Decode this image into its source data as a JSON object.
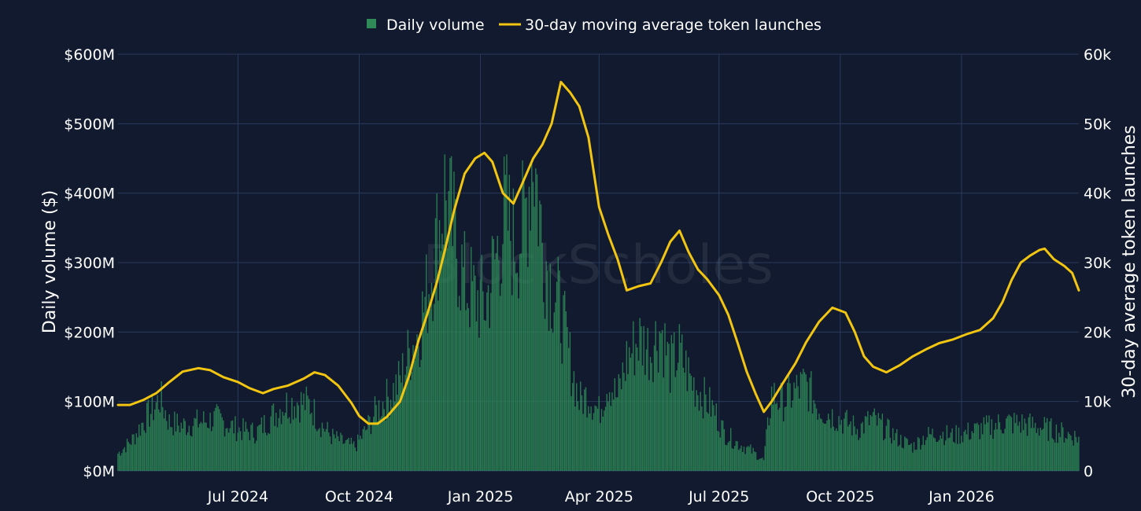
{
  "chart_data": {
    "type": "bar+line",
    "legend": {
      "placement": "top-center",
      "items": [
        {
          "label": "Daily volume",
          "color": "#2e8b57",
          "kind": "bar"
        },
        {
          "label": "30-day moving average token launches",
          "color": "#f2c511",
          "kind": "line"
        }
      ]
    },
    "watermark": "BlockScholes",
    "y_left": {
      "title": "Daily volume ($)",
      "range": [
        0,
        600000000
      ],
      "ticks": [
        {
          "v": 0,
          "label": "$0M"
        },
        {
          "v": 100000000,
          "label": "$100M"
        },
        {
          "v": 200000000,
          "label": "$200M"
        },
        {
          "v": 300000000,
          "label": "$300M"
        },
        {
          "v": 400000000,
          "label": "$400M"
        },
        {
          "v": 500000000,
          "label": "$500M"
        },
        {
          "v": 600000000,
          "label": "$600M"
        }
      ]
    },
    "y_right": {
      "title": "30-day average token launches",
      "range": [
        0,
        60000
      ],
      "ticks": [
        {
          "v": 0,
          "label": "0"
        },
        {
          "v": 10000,
          "label": "10k"
        },
        {
          "v": 20000,
          "label": "20k"
        },
        {
          "v": 30000,
          "label": "30k"
        },
        {
          "v": 40000,
          "label": "40k"
        },
        {
          "v": 50000,
          "label": "50k"
        },
        {
          "v": 60000,
          "label": "60k"
        }
      ]
    },
    "x_axis": {
      "range": [
        "2024-04-01",
        "2026-03-31"
      ],
      "ticks": [
        {
          "date": "2024-07-01",
          "label": "Jul 2024"
        },
        {
          "date": "2024-10-01",
          "label": "Oct 2024"
        },
        {
          "date": "2025-01-01",
          "label": "Jan 2025"
        },
        {
          "date": "2025-04-01",
          "label": "Apr 2025"
        },
        {
          "date": "2025-07-01",
          "label": "Jul 2025"
        },
        {
          "date": "2025-10-01",
          "label": "Oct 2025"
        },
        {
          "date": "2026-01-01",
          "label": "Jan 2026"
        }
      ]
    },
    "grid": true,
    "series": [
      {
        "name": "Daily volume",
        "axis": "left",
        "type": "bar",
        "color": "#2e8b57",
        "points": [
          [
            "2024-04-01",
            25000000
          ],
          [
            "2024-04-12",
            45000000
          ],
          [
            "2024-04-20",
            70000000
          ],
          [
            "2024-04-28",
            90000000
          ],
          [
            "2024-05-03",
            105000000
          ],
          [
            "2024-05-10",
            70000000
          ],
          [
            "2024-05-20",
            65000000
          ],
          [
            "2024-06-01",
            70000000
          ],
          [
            "2024-06-15",
            75000000
          ],
          [
            "2024-07-01",
            60000000
          ],
          [
            "2024-07-15",
            55000000
          ],
          [
            "2024-07-25",
            75000000
          ],
          [
            "2024-08-05",
            95000000
          ],
          [
            "2024-08-15",
            100000000
          ],
          [
            "2024-08-25",
            95000000
          ],
          [
            "2024-09-01",
            70000000
          ],
          [
            "2024-09-10",
            50000000
          ],
          [
            "2024-09-20",
            40000000
          ],
          [
            "2024-09-28",
            35000000
          ],
          [
            "2024-10-05",
            55000000
          ],
          [
            "2024-10-15",
            90000000
          ],
          [
            "2024-10-25",
            110000000
          ],
          [
            "2024-11-01",
            130000000
          ],
          [
            "2024-11-08",
            170000000
          ],
          [
            "2024-11-15",
            200000000
          ],
          [
            "2024-11-22",
            260000000
          ],
          [
            "2024-11-29",
            330000000
          ],
          [
            "2024-12-05",
            400000000
          ],
          [
            "2024-12-12",
            340000000
          ],
          [
            "2024-12-20",
            270000000
          ],
          [
            "2024-12-28",
            250000000
          ],
          [
            "2025-01-05",
            240000000
          ],
          [
            "2025-01-12",
            300000000
          ],
          [
            "2025-01-20",
            370000000
          ],
          [
            "2025-01-26",
            330000000
          ],
          [
            "2025-02-03",
            350000000
          ],
          [
            "2025-02-10",
            470000000
          ],
          [
            "2025-02-17",
            330000000
          ],
          [
            "2025-02-24",
            270000000
          ],
          [
            "2025-03-03",
            230000000
          ],
          [
            "2025-03-10",
            160000000
          ],
          [
            "2025-03-17",
            100000000
          ],
          [
            "2025-03-24",
            110000000
          ],
          [
            "2025-04-01",
            85000000
          ],
          [
            "2025-04-08",
            130000000
          ],
          [
            "2025-04-15",
            105000000
          ],
          [
            "2025-04-22",
            160000000
          ],
          [
            "2025-05-01",
            190000000
          ],
          [
            "2025-05-10",
            175000000
          ],
          [
            "2025-05-18",
            205000000
          ],
          [
            "2025-05-25",
            150000000
          ],
          [
            "2025-06-01",
            170000000
          ],
          [
            "2025-06-10",
            130000000
          ],
          [
            "2025-06-20",
            105000000
          ],
          [
            "2025-06-28",
            85000000
          ],
          [
            "2025-07-05",
            55000000
          ],
          [
            "2025-07-15",
            40000000
          ],
          [
            "2025-07-25",
            30000000
          ],
          [
            "2025-08-04",
            15000000
          ],
          [
            "2025-08-10",
            110000000
          ],
          [
            "2025-08-18",
            100000000
          ],
          [
            "2025-08-28",
            115000000
          ],
          [
            "2025-09-05",
            125000000
          ],
          [
            "2025-09-15",
            90000000
          ],
          [
            "2025-09-25",
            80000000
          ],
          [
            "2025-10-05",
            70000000
          ],
          [
            "2025-10-15",
            60000000
          ],
          [
            "2025-10-25",
            75000000
          ],
          [
            "2025-11-05",
            60000000
          ],
          [
            "2025-11-15",
            45000000
          ],
          [
            "2025-11-25",
            35000000
          ],
          [
            "2025-12-05",
            50000000
          ],
          [
            "2025-12-15",
            55000000
          ],
          [
            "2025-12-25",
            50000000
          ],
          [
            "2026-01-05",
            55000000
          ],
          [
            "2026-01-15",
            60000000
          ],
          [
            "2026-01-25",
            65000000
          ],
          [
            "2026-02-05",
            70000000
          ],
          [
            "2026-02-15",
            68000000
          ],
          [
            "2026-02-25",
            65000000
          ],
          [
            "2026-03-08",
            60000000
          ],
          [
            "2026-03-18",
            55000000
          ],
          [
            "2026-03-31",
            48000000
          ]
        ]
      },
      {
        "name": "30-day moving average token launches",
        "axis": "right",
        "type": "line",
        "color": "#f2c511",
        "points": [
          [
            "2024-04-01",
            9500
          ],
          [
            "2024-04-10",
            9500
          ],
          [
            "2024-04-20",
            10200
          ],
          [
            "2024-04-30",
            11200
          ],
          [
            "2024-05-10",
            12800
          ],
          [
            "2024-05-20",
            14300
          ],
          [
            "2024-06-01",
            14800
          ],
          [
            "2024-06-10",
            14500
          ],
          [
            "2024-06-20",
            13500
          ],
          [
            "2024-07-01",
            12800
          ],
          [
            "2024-07-10",
            11900
          ],
          [
            "2024-07-20",
            11200
          ],
          [
            "2024-07-28",
            11800
          ],
          [
            "2024-08-08",
            12300
          ],
          [
            "2024-08-20",
            13300
          ],
          [
            "2024-08-28",
            14200
          ],
          [
            "2024-09-05",
            13800
          ],
          [
            "2024-09-15",
            12300
          ],
          [
            "2024-09-25",
            9800
          ],
          [
            "2024-10-01",
            7900
          ],
          [
            "2024-10-08",
            6800
          ],
          [
            "2024-10-15",
            6800
          ],
          [
            "2024-10-22",
            7800
          ],
          [
            "2024-11-01",
            10000
          ],
          [
            "2024-11-08",
            13800
          ],
          [
            "2024-11-15",
            18800
          ],
          [
            "2024-11-22",
            22800
          ],
          [
            "2024-11-29",
            27200
          ],
          [
            "2024-12-05",
            31800
          ],
          [
            "2024-12-12",
            37500
          ],
          [
            "2024-12-20",
            42800
          ],
          [
            "2024-12-28",
            45000
          ],
          [
            "2025-01-04",
            45800
          ],
          [
            "2025-01-10",
            44500
          ],
          [
            "2025-01-18",
            40000
          ],
          [
            "2025-01-26",
            38500
          ],
          [
            "2025-02-02",
            41500
          ],
          [
            "2025-02-10",
            45000
          ],
          [
            "2025-02-17",
            47000
          ],
          [
            "2025-02-24",
            50000
          ],
          [
            "2025-03-03",
            56000
          ],
          [
            "2025-03-10",
            54500
          ],
          [
            "2025-03-17",
            52500
          ],
          [
            "2025-03-24",
            48000
          ],
          [
            "2025-04-01",
            38000
          ],
          [
            "2025-04-08",
            34000
          ],
          [
            "2025-04-15",
            30500
          ],
          [
            "2025-04-22",
            26000
          ],
          [
            "2025-05-01",
            26600
          ],
          [
            "2025-05-10",
            27000
          ],
          [
            "2025-05-18",
            30000
          ],
          [
            "2025-05-25",
            33000
          ],
          [
            "2025-06-01",
            34600
          ],
          [
            "2025-06-08",
            31500
          ],
          [
            "2025-06-15",
            29000
          ],
          [
            "2025-06-22",
            27600
          ],
          [
            "2025-07-01",
            25300
          ],
          [
            "2025-07-08",
            22500
          ],
          [
            "2025-07-15",
            18500
          ],
          [
            "2025-07-22",
            14300
          ],
          [
            "2025-07-29",
            11000
          ],
          [
            "2025-08-04",
            8500
          ],
          [
            "2025-08-10",
            10000
          ],
          [
            "2025-08-18",
            12500
          ],
          [
            "2025-08-28",
            15500
          ],
          [
            "2025-09-05",
            18500
          ],
          [
            "2025-09-15",
            21500
          ],
          [
            "2025-09-25",
            23500
          ],
          [
            "2025-10-05",
            22800
          ],
          [
            "2025-10-12",
            20000
          ],
          [
            "2025-10-19",
            16500
          ],
          [
            "2025-10-26",
            15000
          ],
          [
            "2025-11-05",
            14200
          ],
          [
            "2025-11-15",
            15200
          ],
          [
            "2025-11-25",
            16500
          ],
          [
            "2025-12-05",
            17500
          ],
          [
            "2025-12-15",
            18400
          ],
          [
            "2025-12-25",
            18900
          ],
          [
            "2026-01-05",
            19700
          ],
          [
            "2026-01-15",
            20300
          ],
          [
            "2026-01-25",
            22000
          ],
          [
            "2026-02-01",
            24300
          ],
          [
            "2026-02-08",
            27500
          ],
          [
            "2026-02-15",
            30000
          ],
          [
            "2026-02-22",
            31000
          ],
          [
            "2026-03-01",
            31800
          ],
          [
            "2026-03-05",
            32000
          ],
          [
            "2026-03-12",
            30500
          ],
          [
            "2026-03-20",
            29500
          ],
          [
            "2026-03-26",
            28500
          ],
          [
            "2026-03-31",
            26000
          ]
        ]
      }
    ]
  }
}
